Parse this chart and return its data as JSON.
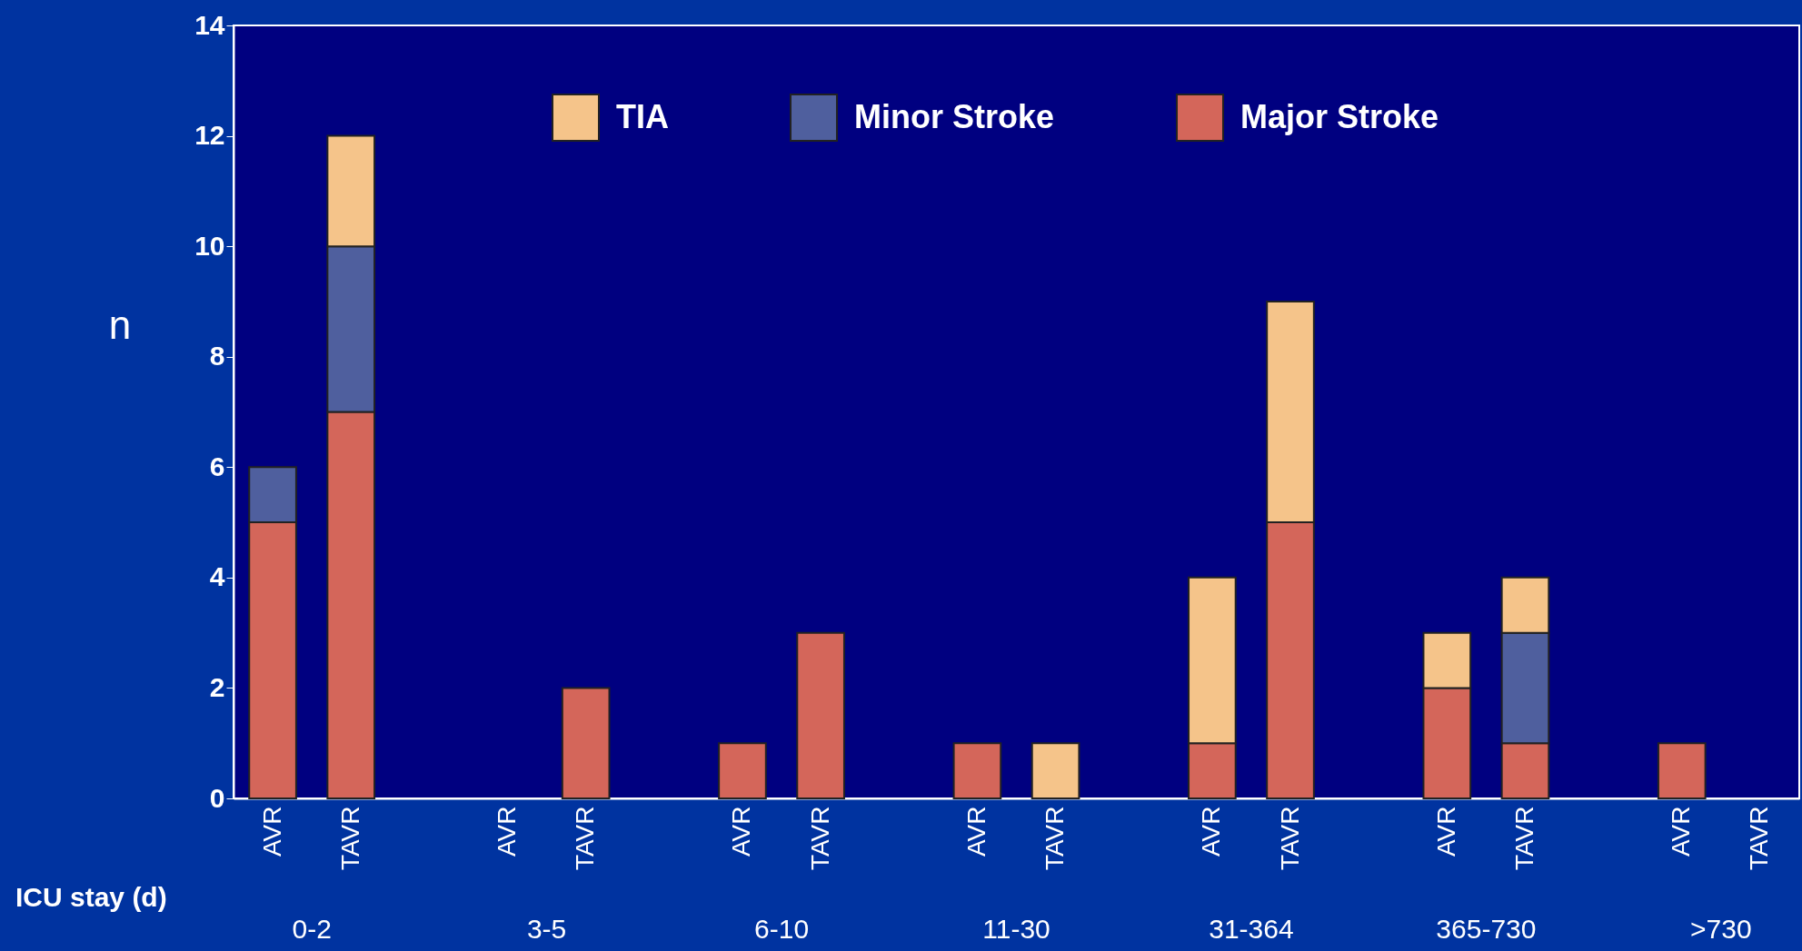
{
  "chart_data": {
    "type": "bar",
    "stacked": true,
    "categories": [
      "AVR",
      "TAVR",
      "AVR",
      "TAVR",
      "AVR",
      "TAVR",
      "AVR",
      "TAVR",
      "AVR",
      "TAVR",
      "AVR",
      "TAVR",
      "AVR",
      "TAVR"
    ],
    "annotations": [
      "0-2",
      "3-5",
      "6-10",
      "11-30",
      "31-364",
      "365-730",
      ">730"
    ],
    "xlabel": "ICU stay (d)",
    "ylabel": "n",
    "series": [
      {
        "name": "Major Stroke",
        "color": "#d4665a",
        "values": [
          5,
          7,
          0,
          2,
          1,
          3,
          1,
          0,
          1,
          5,
          2,
          1,
          1,
          0
        ]
      },
      {
        "name": "Minor Stroke",
        "color": "#4f5f9e",
        "values": [
          1,
          3,
          0,
          0,
          0,
          0,
          0,
          0,
          0,
          0,
          0,
          2,
          0,
          0
        ]
      },
      {
        "name": "TIA",
        "color": "#f5c48a",
        "values": [
          0,
          2,
          0,
          0,
          0,
          0,
          0,
          1,
          3,
          4,
          1,
          1,
          0,
          0
        ]
      }
    ],
    "ylim": [
      0,
      14
    ],
    "yticks": [
      0,
      2,
      4,
      6,
      8,
      10,
      12,
      14
    ],
    "grid": false,
    "legend": "top"
  }
}
